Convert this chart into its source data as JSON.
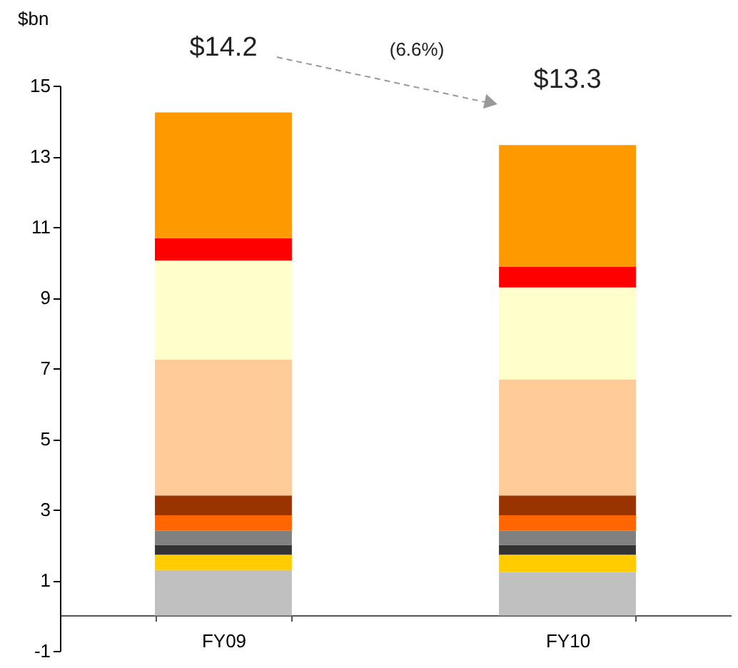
{
  "chart_data": {
    "type": "bar",
    "stacked": true,
    "ylabel": "$bn",
    "categories": [
      "FY09",
      "FY10"
    ],
    "series": [
      {
        "color": "#c0c0c0",
        "values": [
          1.29,
          1.23
        ]
      },
      {
        "color": "#ffcc00",
        "values": [
          0.43,
          0.49
        ]
      },
      {
        "color": "#333333",
        "values": [
          0.28,
          0.28
        ]
      },
      {
        "color": "#808080",
        "values": [
          0.4,
          0.4
        ]
      },
      {
        "color": "#ff6600",
        "values": [
          0.44,
          0.44
        ]
      },
      {
        "color": "#993300",
        "values": [
          0.56,
          0.56
        ]
      },
      {
        "color": "#ffcc99",
        "values": [
          3.84,
          3.28
        ]
      },
      {
        "color": "#ffffcc",
        "values": [
          2.81,
          2.61
        ]
      },
      {
        "color": "#ff0000",
        "values": [
          0.63,
          0.59
        ]
      },
      {
        "color": "#ff9900",
        "values": [
          3.56,
          3.44
        ]
      }
    ],
    "totals": [
      "$14.2",
      "$13.3"
    ],
    "annotations": [
      "(6.6%)"
    ],
    "ylim": [
      -1,
      15
    ],
    "yticks": [
      -1,
      1,
      3,
      5,
      7,
      9,
      11,
      13,
      15
    ],
    "grid": false,
    "legend": false
  }
}
